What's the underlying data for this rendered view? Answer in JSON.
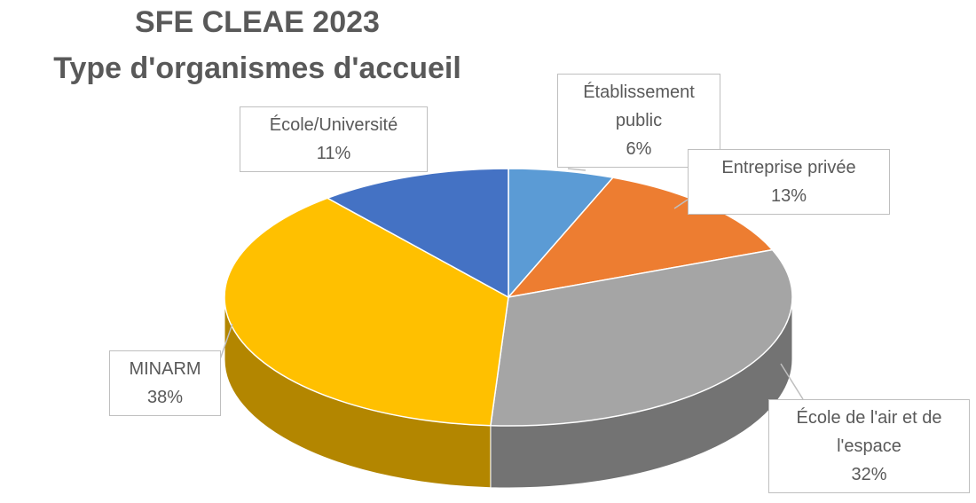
{
  "chart_data": {
    "type": "pie3d",
    "title": [
      "SFE CLEAE 2023",
      "Type d'organismes d'accueil"
    ],
    "categories": [
      "Établissement public",
      "Entreprise privée",
      "École de l'air et de l'espace",
      "MINARM",
      "École/Université"
    ],
    "values": [
      6,
      13,
      32,
      38,
      11
    ],
    "value_labels": [
      "6%",
      "13%",
      "32%",
      "38%",
      "11%"
    ],
    "colors": [
      "#5b9bd5",
      "#ed7d31",
      "#a5a5a5",
      "#ffc000",
      "#4472c4"
    ]
  }
}
